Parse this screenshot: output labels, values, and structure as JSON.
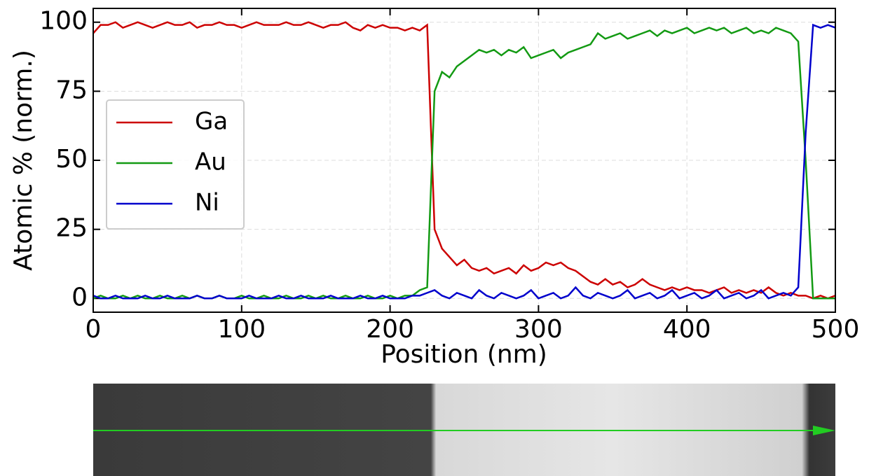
{
  "chart_data": {
    "type": "line",
    "x_label": "Position (nm)",
    "y_label": "Atomic % (norm.)",
    "x": [
      0,
      5,
      10,
      15,
      20,
      25,
      30,
      35,
      40,
      45,
      50,
      55,
      60,
      65,
      70,
      75,
      80,
      85,
      90,
      95,
      100,
      105,
      110,
      115,
      120,
      125,
      130,
      135,
      140,
      145,
      150,
      155,
      160,
      165,
      170,
      175,
      180,
      185,
      190,
      195,
      200,
      205,
      210,
      215,
      220,
      225,
      230,
      235,
      240,
      245,
      250,
      255,
      260,
      265,
      270,
      275,
      280,
      285,
      290,
      295,
      300,
      305,
      310,
      315,
      320,
      325,
      330,
      335,
      340,
      345,
      350,
      355,
      360,
      365,
      370,
      375,
      380,
      385,
      390,
      395,
      400,
      405,
      410,
      415,
      420,
      425,
      430,
      435,
      440,
      445,
      450,
      455,
      460,
      465,
      470,
      475,
      480,
      485,
      490,
      495,
      500
    ],
    "series": [
      {
        "name": "Ga",
        "color": "#cc0000",
        "values": [
          96,
          99,
          99,
          100,
          98,
          99,
          100,
          99,
          98,
          99,
          100,
          99,
          99,
          100,
          98,
          99,
          99,
          100,
          99,
          99,
          98,
          99,
          100,
          99,
          99,
          99,
          100,
          99,
          99,
          100,
          99,
          98,
          99,
          99,
          100,
          98,
          97,
          99,
          98,
          99,
          98,
          98,
          97,
          98,
          97,
          99,
          25,
          18,
          15,
          12,
          14,
          11,
          10,
          11,
          9,
          10,
          11,
          9,
          12,
          10,
          11,
          13,
          12,
          13,
          11,
          10,
          8,
          6,
          5,
          7,
          5,
          6,
          4,
          5,
          7,
          5,
          4,
          3,
          4,
          3,
          4,
          3,
          3,
          2,
          3,
          4,
          2,
          3,
          2,
          3,
          2,
          4,
          2,
          1,
          2,
          1,
          1,
          0,
          1,
          0,
          1
        ]
      },
      {
        "name": "Au",
        "color": "#139a13",
        "values": [
          0,
          1,
          0,
          0,
          1,
          0,
          1,
          0,
          0,
          1,
          0,
          0,
          1,
          0,
          1,
          0,
          0,
          1,
          0,
          0,
          1,
          0,
          0,
          1,
          0,
          0,
          1,
          0,
          0,
          1,
          0,
          1,
          0,
          0,
          1,
          0,
          0,
          1,
          0,
          0,
          1,
          0,
          1,
          1,
          3,
          4,
          75,
          82,
          80,
          84,
          86,
          88,
          90,
          89,
          90,
          88,
          90,
          89,
          91,
          87,
          88,
          89,
          90,
          87,
          89,
          90,
          91,
          92,
          96,
          94,
          95,
          96,
          94,
          95,
          96,
          97,
          95,
          97,
          96,
          97,
          98,
          96,
          97,
          98,
          97,
          98,
          96,
          97,
          98,
          96,
          97,
          96,
          98,
          97,
          96,
          93,
          50,
          0,
          0,
          0,
          0
        ]
      },
      {
        "name": "Ni",
        "color": "#0000cc",
        "values": [
          1,
          0,
          0,
          1,
          0,
          0,
          0,
          1,
          0,
          0,
          1,
          0,
          0,
          0,
          1,
          0,
          0,
          1,
          0,
          0,
          0,
          1,
          0,
          0,
          0,
          1,
          0,
          0,
          1,
          0,
          0,
          0,
          1,
          0,
          0,
          0,
          1,
          0,
          0,
          1,
          0,
          0,
          0,
          1,
          1,
          2,
          3,
          1,
          0,
          2,
          1,
          0,
          3,
          1,
          0,
          2,
          1,
          0,
          1,
          3,
          0,
          1,
          2,
          0,
          1,
          4,
          1,
          0,
          2,
          1,
          0,
          1,
          3,
          0,
          1,
          2,
          0,
          1,
          3,
          0,
          1,
          2,
          0,
          1,
          3,
          0,
          1,
          2,
          0,
          1,
          3,
          0,
          1,
          2,
          1,
          4,
          60,
          99,
          98,
          99,
          98
        ]
      }
    ],
    "xlim": [
      0,
      500
    ],
    "ylim": [
      -5,
      105
    ],
    "xticks": [
      0,
      100,
      200,
      300,
      400,
      500
    ],
    "yticks": [
      0,
      25,
      50,
      75,
      100
    ],
    "grid": true,
    "legend": "center left"
  }
}
